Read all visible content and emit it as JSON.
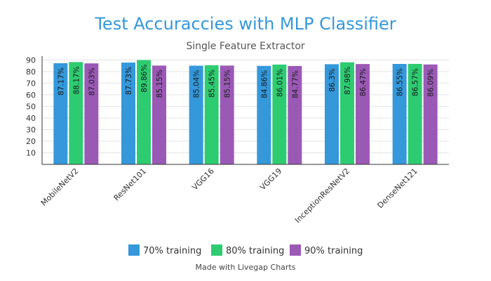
{
  "chart_data": {
    "type": "bar",
    "title": "Test Accuraccies with MLP Classifier",
    "subtitle": "Single Feature Extractor",
    "categories": [
      "MobileNetV2",
      "ResNet101",
      "VGG16",
      "VGG19",
      "InceptionResNetV2",
      "DenseNet121"
    ],
    "series": [
      {
        "name": "70% training",
        "color": "#3498db",
        "values": [
          87.17,
          87.73,
          85.04,
          84.86,
          86.3,
          86.55
        ],
        "labels": [
          "87.17%",
          "87.73%",
          "85.04%",
          "84.86%",
          "86.3%",
          "86.55%"
        ]
      },
      {
        "name": "80% training",
        "color": "#2ecc71",
        "values": [
          88.17,
          89.86,
          85.45,
          86.01,
          87.98,
          86.57
        ],
        "labels": [
          "88.17%",
          "89.86%",
          "85.45%",
          "86.01%",
          "87.98%",
          "86.57%"
        ]
      },
      {
        "name": "90% training",
        "color": "#9b59b6",
        "values": [
          87.03,
          85.15,
          85.15,
          84.77,
          86.47,
          86.09
        ],
        "labels": [
          "87.03%",
          "85.15%",
          "85.15%",
          "84.77%",
          "86.47%",
          "86.09%"
        ]
      }
    ],
    "yticks": [
      10,
      20,
      30,
      40,
      50,
      60,
      70,
      80,
      90
    ],
    "ylim": [
      0,
      92
    ],
    "xlabel": "",
    "ylabel": "",
    "grid": true,
    "legend_position": "bottom",
    "title_color": "#3498db"
  },
  "footer": "Made with Livegap Charts"
}
